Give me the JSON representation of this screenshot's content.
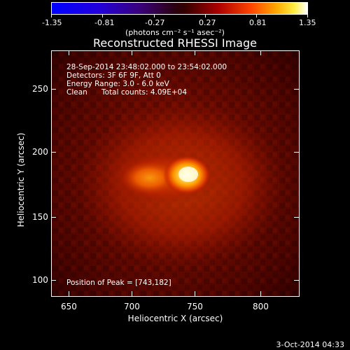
{
  "colorbar": {
    "tick_labels": [
      "-1.35",
      "-0.81",
      "-0.27",
      "0.27",
      "0.81",
      "1.35"
    ],
    "units_label": "(photons cm⁻² s⁻¹ asec⁻²)"
  },
  "plot": {
    "title": "Reconstructed RHESSI Image",
    "annotations": {
      "time_range": "28-Sep-2014 23:48:02.000 to 23:54:02.000",
      "detectors": "Detectors: 3F 6F 9F, Att 0",
      "energy_range": "Energy Range: 3.0 - 6.0 keV",
      "method": "Clean",
      "total_counts": "Total counts: 4.09E+04",
      "peak_position": "Position of Peak = [743,182]"
    },
    "x_axis": {
      "label": "Heliocentric X (arcsec)",
      "tick_labels": [
        "650",
        "700",
        "750",
        "800"
      ]
    },
    "y_axis": {
      "label": "Heliocentric Y (arcsec)",
      "tick_labels": [
        "100",
        "150",
        "200",
        "250"
      ]
    }
  },
  "footer": {
    "date": "3-Oct-2014 04:33"
  }
}
